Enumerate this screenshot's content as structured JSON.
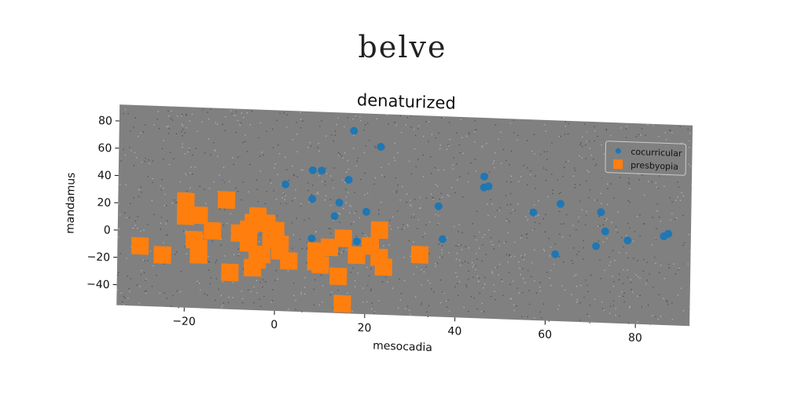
{
  "suptitle": "belve",
  "chart_data": {
    "type": "scatter",
    "title": "denaturized",
    "xlabel": "mesocadia",
    "ylabel": "mandamus",
    "xlim": [
      -35,
      92
    ],
    "ylim": [
      -55,
      92
    ],
    "xticks": [
      -20,
      0,
      20,
      40,
      60,
      80
    ],
    "yticks": [
      -40,
      -20,
      0,
      20,
      40,
      60,
      80
    ],
    "xtick_labels": [
      "−20",
      "0",
      "20",
      "40",
      "60",
      "80"
    ],
    "ytick_labels": [
      "−40",
      "−20",
      "0",
      "20",
      "40",
      "60",
      "80"
    ],
    "grid": false,
    "legend_position": "top-right",
    "plot_background": "#808080",
    "series": [
      {
        "name": "cocurricular",
        "marker": "circle",
        "color": "#1f77b4",
        "points": [
          [
            17,
            79
          ],
          [
            23,
            68
          ],
          [
            8,
            49
          ],
          [
            10,
            49
          ],
          [
            16,
            43
          ],
          [
            2,
            38
          ],
          [
            8,
            28
          ],
          [
            14,
            26
          ],
          [
            20,
            20
          ],
          [
            13,
            16
          ],
          [
            36,
            26
          ],
          [
            37,
            2
          ],
          [
            46,
            49
          ],
          [
            46,
            41
          ],
          [
            47,
            42
          ],
          [
            57,
            24
          ],
          [
            63,
            31
          ],
          [
            62,
            -6
          ],
          [
            72,
            26
          ],
          [
            73,
            12
          ],
          [
            71,
            1
          ],
          [
            78,
            6
          ],
          [
            87,
            12
          ],
          [
            86,
            10
          ],
          [
            8,
            -1
          ],
          [
            18,
            -2
          ]
        ]
      },
      {
        "name": "presbyopia",
        "marker": "square",
        "color": "#ff7f0e",
        "points": [
          [
            -30,
            -11
          ],
          [
            -25,
            -17
          ],
          [
            -20,
            23
          ],
          [
            -20,
            12
          ],
          [
            -17,
            13
          ],
          [
            -14,
            2
          ],
          [
            -18,
            -5
          ],
          [
            -17,
            -11
          ],
          [
            -17,
            -16
          ],
          [
            -11,
            25
          ],
          [
            -10,
            -28
          ],
          [
            -8,
            1
          ],
          [
            -6,
            4
          ],
          [
            -6,
            -6
          ],
          [
            -5,
            9
          ],
          [
            -4,
            14
          ],
          [
            -2,
            9
          ],
          [
            -3,
            -14
          ],
          [
            -4,
            -18
          ],
          [
            -5,
            -24
          ],
          [
            0,
            4
          ],
          [
            -1,
            -3
          ],
          [
            1,
            -6
          ],
          [
            1,
            -11
          ],
          [
            3,
            -18
          ],
          [
            9,
            -10
          ],
          [
            9,
            -18
          ],
          [
            10,
            -20
          ],
          [
            12,
            -7
          ],
          [
            14,
            -28
          ],
          [
            15,
            0
          ],
          [
            15,
            -48
          ],
          [
            18,
            -12
          ],
          [
            21,
            -5
          ],
          [
            23,
            7
          ],
          [
            23,
            -13
          ],
          [
            24,
            -20
          ],
          [
            32,
            -10
          ]
        ]
      }
    ]
  }
}
